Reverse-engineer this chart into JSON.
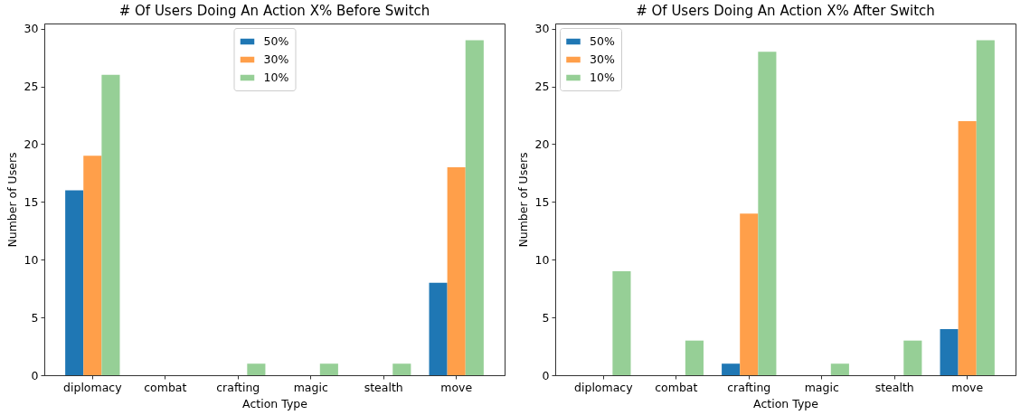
{
  "chart_data": [
    {
      "type": "bar",
      "title": "# Of Users Doing An Action X% Before Switch",
      "xlabel": "Action Type",
      "ylabel": "Number of Users",
      "categories": [
        "diplomacy",
        "combat",
        "crafting",
        "magic",
        "stealth",
        "move"
      ],
      "series": [
        {
          "name": "50%",
          "color": "#1f77b4",
          "values": [
            16,
            0,
            0,
            0,
            0,
            8
          ]
        },
        {
          "name": "30%",
          "color": "#ff9f4a",
          "values": [
            19,
            0,
            0,
            0,
            0,
            18
          ]
        },
        {
          "name": "10%",
          "color": "#96cf96",
          "values": [
            26,
            0,
            1,
            1,
            1,
            29
          ]
        }
      ],
      "ylim": [
        0,
        30.45
      ],
      "yticks": [
        0,
        5,
        10,
        15,
        20,
        25,
        30
      ],
      "grid": false,
      "legend": "top"
    },
    {
      "type": "bar",
      "title": "# Of Users Doing An Action X% After Switch",
      "xlabel": "Action Type",
      "ylabel": "Number of Users",
      "categories": [
        "diplomacy",
        "combat",
        "crafting",
        "magic",
        "stealth",
        "move"
      ],
      "series": [
        {
          "name": "50%",
          "color": "#1f77b4",
          "values": [
            0,
            0,
            1,
            0,
            0,
            4
          ]
        },
        {
          "name": "30%",
          "color": "#ff9f4a",
          "values": [
            0,
            0,
            14,
            0,
            0,
            22
          ]
        },
        {
          "name": "10%",
          "color": "#96cf96",
          "values": [
            9,
            3,
            28,
            1,
            3,
            29
          ]
        }
      ],
      "ylim": [
        0,
        30.45
      ],
      "yticks": [
        0,
        5,
        10,
        15,
        20,
        25,
        30
      ],
      "grid": false,
      "legend": "top left"
    }
  ]
}
